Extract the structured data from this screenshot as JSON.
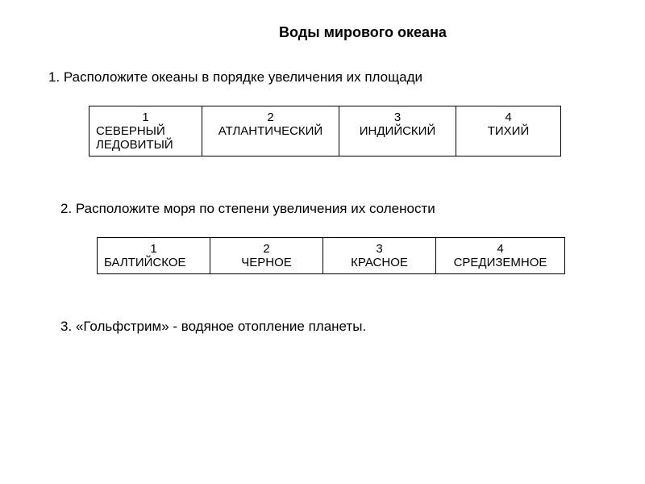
{
  "title": "Воды мирового океана",
  "questions": {
    "q1": "1. Расположите океаны в порядке увеличения их площади",
    "q2": "2.   Расположите моря по степени увеличения их солености",
    "q3": "3.   «Гольфстрим» - водяное отопление планеты."
  },
  "table1": {
    "cells": [
      {
        "num": "1",
        "label": "СЕВЕРНЫЙ ЛЕДОВИТЫЙ"
      },
      {
        "num": "2",
        "label": "АТЛАНТИЧЕСКИЙ"
      },
      {
        "num": "3",
        "label": "ИНДИЙСКИЙ"
      },
      {
        "num": "4",
        "label": "ТИХИЙ"
      }
    ],
    "border_color": "#000000",
    "text_color": "#000000",
    "font_size": 15
  },
  "table2": {
    "cells": [
      {
        "num": "1",
        "label": "БАЛТИЙСКОЕ"
      },
      {
        "num": "2",
        "label": "ЧЕРНОЕ"
      },
      {
        "num": "3",
        "label": "КРАСНОЕ"
      },
      {
        "num": "4",
        "label": "СРЕДИЗЕМНОЕ"
      }
    ],
    "border_color": "#000000",
    "text_color": "#000000",
    "font_size": 15
  },
  "styling": {
    "background_color": "#ffffff",
    "title_fontsize": 18,
    "question_fontsize": 17,
    "font_family": "Arial"
  }
}
